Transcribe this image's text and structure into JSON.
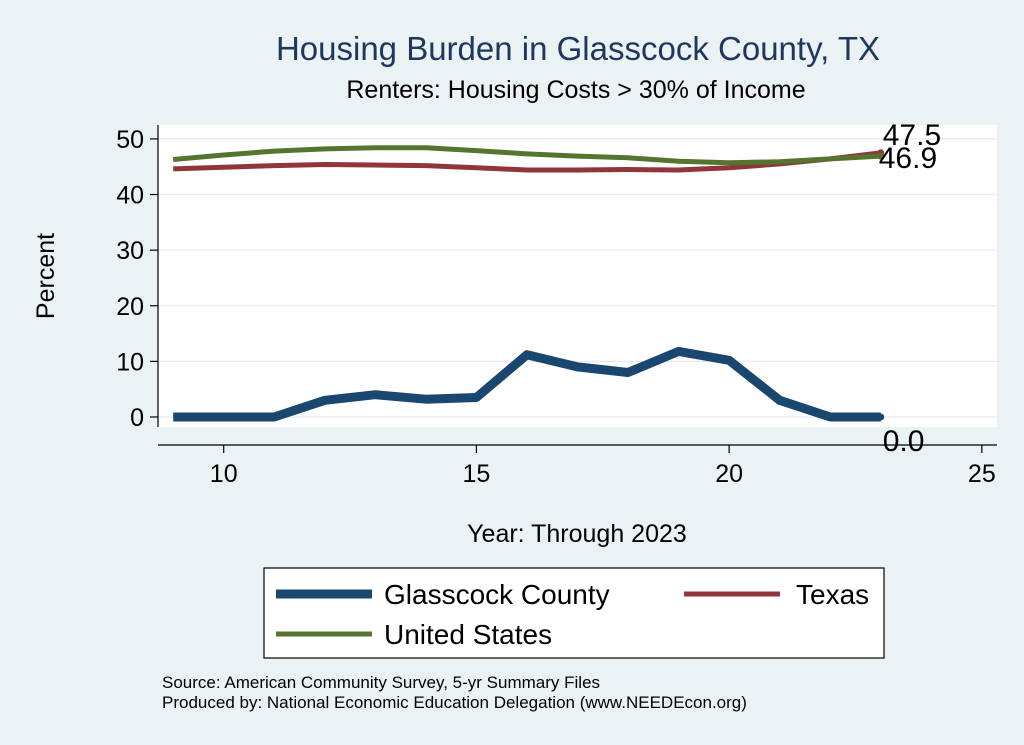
{
  "chart_data": {
    "type": "line",
    "title": "Housing Burden in Glasscock County, TX",
    "subtitle": "Renters: Housing Costs > 30% of Income",
    "xlabel": "Year: Through 2023",
    "ylabel": "Percent",
    "xlim": [
      8.7,
      25.3
    ],
    "ylim": [
      -1.8,
      52.5
    ],
    "xticks": [
      10,
      15,
      20,
      25
    ],
    "yticks": [
      0,
      10,
      20,
      30,
      40,
      50
    ],
    "grid": "horizontal",
    "legend_position": "bottom",
    "series": [
      {
        "name": "Glasscock County",
        "color": "#1a476f",
        "x": [
          9,
          10,
          11,
          12,
          13,
          14,
          15,
          16,
          17,
          18,
          19,
          20,
          21,
          22,
          23
        ],
        "y": [
          0.0,
          0.0,
          0.0,
          3.0,
          4.0,
          3.2,
          3.5,
          11.2,
          9.0,
          8.0,
          11.8,
          10.2,
          3.0,
          0.0,
          0.0
        ],
        "end_label": "0.0"
      },
      {
        "name": "Texas",
        "color": "#90353b",
        "x": [
          9,
          10,
          11,
          12,
          13,
          14,
          15,
          16,
          17,
          18,
          19,
          20,
          21,
          22,
          23
        ],
        "y": [
          44.6,
          44.9,
          45.2,
          45.4,
          45.3,
          45.2,
          44.8,
          44.4,
          44.4,
          44.5,
          44.4,
          44.8,
          45.5,
          46.4,
          47.5
        ],
        "end_label": "47.5"
      },
      {
        "name": "United States",
        "color": "#55752f",
        "x": [
          9,
          10,
          11,
          12,
          13,
          14,
          15,
          16,
          17,
          18,
          19,
          20,
          21,
          22,
          23
        ],
        "y": [
          46.3,
          47.1,
          47.8,
          48.2,
          48.4,
          48.4,
          47.9,
          47.3,
          46.9,
          46.6,
          46.0,
          45.7,
          45.9,
          46.4,
          46.9
        ],
        "end_label": "46.9"
      }
    ],
    "source_lines": [
      "Source: American Community Survey, 5-yr Summary Files",
      "Produced by: National Economic Education Delegation (www.NEEDEcon.org)"
    ]
  }
}
